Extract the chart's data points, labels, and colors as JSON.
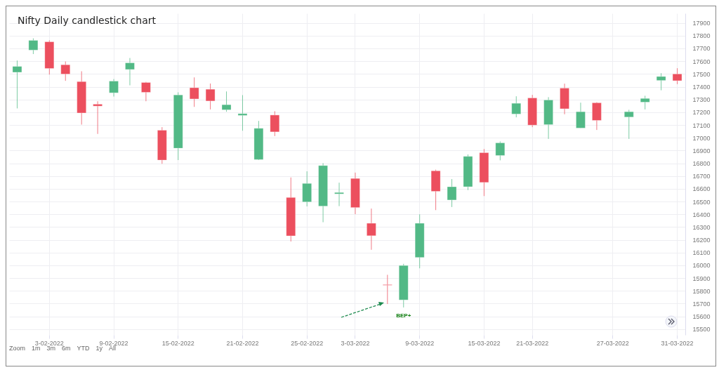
{
  "chart_data": {
    "type": "candlestick",
    "title": "Nifty Daily candlestick chart",
    "categories": [
      null,
      null,
      "3-02-2022",
      null,
      null,
      null,
      "9-02-2022",
      null,
      null,
      null,
      "15-02-2022",
      null,
      null,
      null,
      "21-02-2022",
      null,
      null,
      null,
      "25-02-2022",
      null,
      null,
      "3-03-2022",
      null,
      null,
      null,
      "9-03-2022",
      null,
      null,
      null,
      "15-03-2022",
      null,
      null,
      "21-03-2022",
      null,
      null,
      null,
      null,
      "27-03-2022",
      null,
      null,
      null,
      "31-03-2022"
    ],
    "ohlc": [
      [
        17513,
        17605,
        17230,
        17559
      ],
      [
        17687,
        17779,
        17656,
        17763
      ],
      [
        17752,
        17763,
        17495,
        17543
      ],
      [
        17572,
        17598,
        17446,
        17499
      ],
      [
        17440,
        17521,
        17103,
        17194
      ],
      [
        17263,
        17286,
        17030,
        17248
      ],
      [
        17352,
        17460,
        17323,
        17444
      ],
      [
        17535,
        17625,
        17411,
        17587
      ],
      [
        17433,
        17438,
        17286,
        17356
      ],
      [
        17059,
        17083,
        16796,
        16825
      ],
      [
        16918,
        17356,
        16825,
        17336
      ],
      [
        17392,
        17473,
        17242,
        17304
      ],
      [
        17380,
        17425,
        17222,
        17288
      ],
      [
        17219,
        17363,
        17204,
        17259
      ],
      [
        17175,
        17334,
        17055,
        17189
      ],
      [
        16829,
        17132,
        16825,
        17074
      ],
      [
        17178,
        17208,
        17013,
        17046
      ],
      [
        16532,
        16689,
        16187,
        16231
      ],
      [
        16497,
        16737,
        16462,
        16642
      ],
      [
        16464,
        16801,
        16338,
        16782
      ],
      [
        16560,
        16648,
        16464,
        16571
      ],
      [
        16681,
        16727,
        16401,
        16453
      ],
      [
        16330,
        16445,
        16122,
        16232
      ],
      [
        15849,
        15926,
        15697,
        15844
      ],
      [
        15729,
        16012,
        15670,
        15999
      ],
      [
        16062,
        16400,
        15977,
        16330
      ],
      [
        16741,
        16750,
        16433,
        16580
      ],
      [
        16512,
        16676,
        16457,
        16616
      ],
      [
        16616,
        16869,
        16590,
        16854
      ],
      [
        16883,
        16912,
        16543,
        16650
      ],
      [
        16861,
        16971,
        16823,
        16960
      ],
      [
        17186,
        17325,
        17160,
        17270
      ],
      [
        17312,
        17336,
        17083,
        17099
      ],
      [
        17103,
        17318,
        16991,
        17296
      ],
      [
        17389,
        17424,
        17184,
        17227
      ],
      [
        17076,
        17275,
        17076,
        17204
      ],
      [
        17274,
        17279,
        17061,
        17136
      ],
      null,
      [
        17162,
        17219,
        16991,
        17204
      ],
      [
        17279,
        17329,
        17222,
        17308
      ],
      [
        17449,
        17506,
        17372,
        17480
      ],
      [
        17500,
        17545,
        17420,
        17447
      ]
    ],
    "colors": [
      "#52b986",
      "#52b986",
      "#ec4f5e",
      "#ec4f5e",
      "#ec4f5e",
      "#ec4f5e",
      "#52b986",
      "#52b986",
      "#ec4f5e",
      "#ec4f5e",
      "#52b986",
      "#ec4f5e",
      "#ec4f5e",
      "#52b986",
      "#52b986",
      "#52b986",
      "#ec4f5e",
      "#ec4f5e",
      "#52b986",
      "#52b986",
      "#52b986",
      "#ec4f5e",
      "#ec4f5e",
      "#ec4f5e",
      "#52b986",
      "#52b986",
      "#ec4f5e",
      "#52b986",
      "#52b986",
      "#ec4f5e",
      "#52b986",
      "#52b986",
      "#ec4f5e",
      "#52b986",
      "#ec4f5e",
      "#52b986",
      "#ec4f5e",
      null,
      "#52b986",
      "#52b986",
      "#52b986",
      "#ec4f5e"
    ],
    "ylim": [
      15455,
      17975
    ],
    "yticks": [
      15500,
      15600,
      15700,
      15800,
      15900,
      16000,
      16100,
      16200,
      16300,
      16400,
      16500,
      16600,
      16700,
      16800,
      16900,
      17000,
      17100,
      17200,
      17300,
      17400,
      17500,
      17600,
      17700,
      17800,
      17900
    ],
    "grid": true,
    "annotations": [
      {
        "text": "BEP+",
        "y": 15670
      },
      "Zoom",
      "1m",
      "3m",
      "6m",
      "YTD",
      "1y",
      "All"
    ]
  }
}
